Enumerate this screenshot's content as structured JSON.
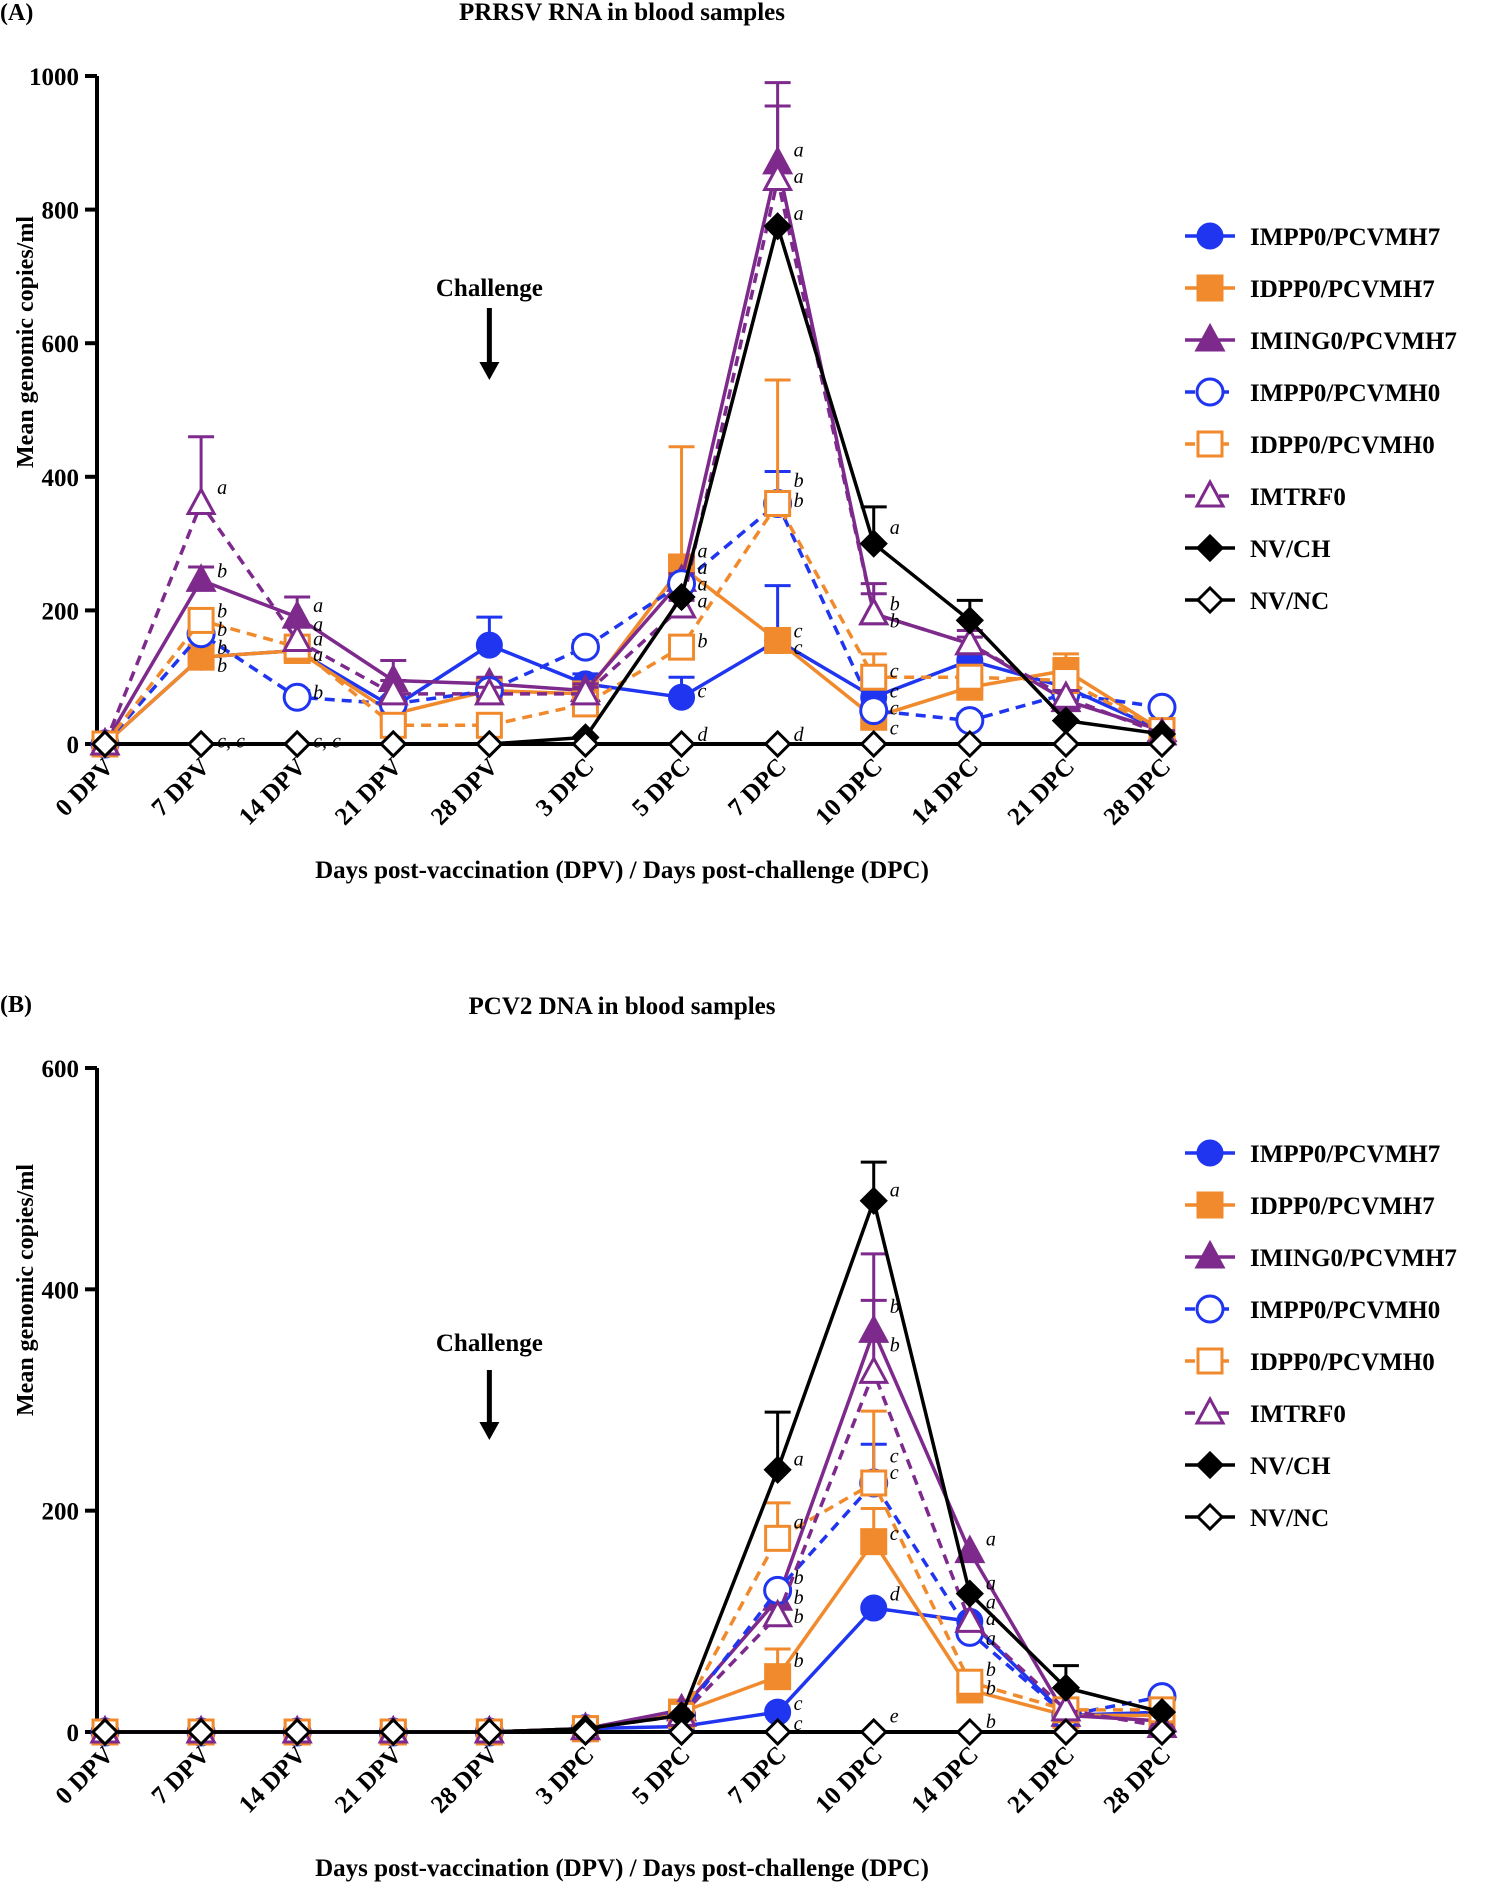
{
  "colors": {
    "IMPP0/PCVMH7": "#1f35f0",
    "IDPP0/PCVMH7": "#f08a2c",
    "IMING0/PCVMH7": "#7d2a8c",
    "IMPP0/PCVMH0": "#1f35f0",
    "IDPP0/PCVMH0": "#f08a2c",
    "IMTRF0": "#7d2a8c",
    "NV/CH": "#000000",
    "NV/NC": "#000000"
  },
  "chart_data": [
    {
      "type": "line",
      "panel_label": "(A)",
      "title": "PRRSV RNA in blood samples",
      "xlabel": "Days post-vaccination (DPV) / Days post-challenge (DPC)",
      "ylabel": "Mean genomic copies/ml",
      "ylim": [
        0,
        1000
      ],
      "yticks": [
        "0",
        "200",
        "400",
        "600",
        "800",
        "1000"
      ],
      "categories": [
        "0 DPV",
        "7 DPV",
        "14 DPV",
        "21 DPV",
        "28 DPV",
        "3 DPC",
        "5 DPC",
        "7 DPC",
        "10 DPC",
        "14 DPC",
        "21 DPC",
        "28 DPC"
      ],
      "annotation": "Challenge",
      "annotation_after": "28 DPV",
      "legend_position": "right",
      "series": [
        {
          "name": "IMPP0/PCVMH7",
          "marker": "circle",
          "filled": true,
          "dashed": false,
          "values": [
            0,
            130,
            140,
            55,
            148,
            90,
            70,
            155,
            70,
            125,
            85,
            20
          ],
          "err": [
            0,
            10,
            10,
            10,
            42,
            15,
            30,
            82,
            10,
            10,
            10,
            5
          ]
        },
        {
          "name": "IDPP0/PCVMH7",
          "marker": "square",
          "filled": true,
          "dashed": false,
          "values": [
            0,
            130,
            140,
            45,
            80,
            75,
            265,
            155,
            40,
            85,
            110,
            20
          ],
          "err": [
            0,
            10,
            10,
            10,
            10,
            10,
            180,
            10,
            10,
            10,
            25,
            5
          ]
        },
        {
          "name": "IMING0/PCVMH7",
          "marker": "triangle",
          "filled": true,
          "dashed": false,
          "values": [
            0,
            245,
            190,
            95,
            90,
            80,
            245,
            870,
            195,
            150,
            65,
            20
          ],
          "err": [
            0,
            20,
            30,
            30,
            10,
            10,
            10,
            120,
            45,
            20,
            10,
            5
          ]
        },
        {
          "name": "IMPP0/PCVMH0",
          "marker": "circle",
          "filled": false,
          "dashed": true,
          "values": [
            0,
            165,
            70,
            60,
            80,
            145,
            240,
            360,
            50,
            35,
            75,
            55
          ],
          "err": [
            0,
            10,
            10,
            10,
            10,
            10,
            10,
            48,
            10,
            10,
            10,
            5
          ]
        },
        {
          "name": "IDPP0/PCVMH0",
          "marker": "square",
          "filled": false,
          "dashed": true,
          "values": [
            0,
            185,
            145,
            28,
            28,
            60,
            145,
            360,
            100,
            100,
            95,
            20
          ],
          "err": [
            0,
            10,
            10,
            10,
            10,
            10,
            10,
            185,
            35,
            10,
            10,
            5
          ]
        },
        {
          "name": "IMTRF0",
          "marker": "triangle",
          "filled": false,
          "dashed": true,
          "values": [
            0,
            360,
            155,
            75,
            75,
            75,
            205,
            845,
            195,
            150,
            70,
            15
          ],
          "err": [
            0,
            100,
            20,
            20,
            10,
            10,
            10,
            110,
            30,
            10,
            10,
            5
          ]
        },
        {
          "name": "NV/CH",
          "marker": "diamond",
          "filled": true,
          "dashed": false,
          "values": [
            0,
            0,
            0,
            0,
            0,
            10,
            220,
            775,
            300,
            185,
            35,
            15
          ],
          "err": [
            0,
            0,
            0,
            0,
            0,
            0,
            0,
            0,
            55,
            30,
            0,
            0
          ]
        },
        {
          "name": "NV/NC",
          "marker": "diamond",
          "filled": false,
          "dashed": false,
          "values": [
            0,
            0,
            0,
            0,
            0,
            0,
            0,
            0,
            0,
            0,
            0,
            0
          ],
          "err": [
            0,
            0,
            0,
            0,
            0,
            0,
            0,
            0,
            0,
            0,
            0,
            0
          ]
        }
      ],
      "letters": [
        {
          "category": "7 DPV",
          "value": 385,
          "text": "a"
        },
        {
          "category": "7 DPV",
          "value": 260,
          "text": "b"
        },
        {
          "category": "7 DPV",
          "value": 200,
          "text": "b"
        },
        {
          "category": "7 DPV",
          "value": 172,
          "text": "b"
        },
        {
          "category": "7 DPV",
          "value": 145,
          "text": "b"
        },
        {
          "category": "7 DPV",
          "value": 118,
          "text": "b"
        },
        {
          "category": "7 DPV",
          "value": 5,
          "text": "c, c"
        },
        {
          "category": "14 DPV",
          "value": 208,
          "text": "a"
        },
        {
          "category": "14 DPV",
          "value": 180,
          "text": "a"
        },
        {
          "category": "14 DPV",
          "value": 158,
          "text": "a"
        },
        {
          "category": "14 DPV",
          "value": 135,
          "text": "a"
        },
        {
          "category": "14 DPV",
          "value": 78,
          "text": "b"
        },
        {
          "category": "14 DPV",
          "value": 5,
          "text": "c, c"
        },
        {
          "category": "5 DPC",
          "value": 290,
          "text": "a"
        },
        {
          "category": "5 DPC",
          "value": 265,
          "text": "a"
        },
        {
          "category": "5 DPC",
          "value": 240,
          "text": "a"
        },
        {
          "category": "5 DPC",
          "value": 215,
          "text": "a"
        },
        {
          "category": "5 DPC",
          "value": 155,
          "text": "b"
        },
        {
          "category": "5 DPC",
          "value": 80,
          "text": "c"
        },
        {
          "category": "5 DPC",
          "value": 15,
          "text": "d"
        },
        {
          "category": "7 DPC",
          "value": 890,
          "text": "a"
        },
        {
          "category": "7 DPC",
          "value": 850,
          "text": "a"
        },
        {
          "category": "7 DPC",
          "value": 795,
          "text": "a"
        },
        {
          "category": "7 DPC",
          "value": 395,
          "text": "b"
        },
        {
          "category": "7 DPC",
          "value": 365,
          "text": "b"
        },
        {
          "category": "7 DPC",
          "value": 170,
          "text": "c"
        },
        {
          "category": "7 DPC",
          "value": 145,
          "text": "c"
        },
        {
          "category": "7 DPC",
          "value": 15,
          "text": "d"
        },
        {
          "category": "10 DPC",
          "value": 325,
          "text": "a"
        },
        {
          "category": "10 DPC",
          "value": 210,
          "text": "b"
        },
        {
          "category": "10 DPC",
          "value": 185,
          "text": "b"
        },
        {
          "category": "10 DPC",
          "value": 110,
          "text": "c"
        },
        {
          "category": "10 DPC",
          "value": 80,
          "text": "c"
        },
        {
          "category": "10 DPC",
          "value": 55,
          "text": "c"
        },
        {
          "category": "10 DPC",
          "value": 25,
          "text": "c"
        }
      ]
    },
    {
      "type": "line",
      "panel_label": "(B)",
      "title": "PCV2 DNA in blood samples",
      "xlabel": "Days post-vaccination (DPV) / Days post-challenge (DPC)",
      "ylabel": "Mean genomic copies/ml",
      "ylim": [
        0,
        600
      ],
      "yticks": [
        "0",
        "200",
        "400",
        "600"
      ],
      "categories": [
        "0 DPV",
        "7 DPV",
        "14 DPV",
        "21 DPV",
        "28 DPV",
        "3 DPC",
        "5 DPC",
        "7 DPC",
        "10 DPC",
        "14 DPC",
        "21 DPC",
        "28 DPC"
      ],
      "annotation": "Challenge",
      "annotation_after": "28 DPV",
      "legend_position": "right",
      "series": [
        {
          "name": "IMPP0/PCVMH7",
          "marker": "circle",
          "filled": true,
          "dashed": false,
          "values": [
            0,
            0,
            0,
            0,
            0,
            3,
            5,
            18,
            112,
            100,
            15,
            18
          ],
          "err": [
            0,
            0,
            0,
            0,
            0,
            0,
            0,
            0,
            0,
            0,
            0,
            0
          ]
        },
        {
          "name": "IDPP0/PCVMH7",
          "marker": "square",
          "filled": true,
          "dashed": false,
          "values": [
            0,
            0,
            0,
            0,
            0,
            3,
            18,
            50,
            172,
            38,
            15,
            15
          ],
          "err": [
            0,
            0,
            0,
            0,
            0,
            0,
            0,
            25,
            30,
            0,
            0,
            0
          ]
        },
        {
          "name": "IMING0/PCVMH7",
          "marker": "triangle",
          "filled": true,
          "dashed": false,
          "values": [
            0,
            0,
            0,
            0,
            0,
            3,
            20,
            120,
            362,
            163,
            15,
            10
          ],
          "err": [
            0,
            0,
            0,
            0,
            0,
            0,
            0,
            0,
            70,
            0,
            0,
            0
          ]
        },
        {
          "name": "IMPP0/PCVMH0",
          "marker": "circle",
          "filled": false,
          "dashed": true,
          "values": [
            0,
            0,
            0,
            0,
            0,
            3,
            15,
            128,
            225,
            90,
            15,
            32
          ],
          "err": [
            0,
            0,
            0,
            0,
            0,
            0,
            0,
            0,
            35,
            0,
            0,
            0
          ]
        },
        {
          "name": "IDPP0/PCVMH0",
          "marker": "square",
          "filled": false,
          "dashed": true,
          "values": [
            0,
            0,
            0,
            0,
            0,
            3,
            15,
            175,
            225,
            45,
            20,
            20
          ],
          "err": [
            0,
            0,
            0,
            0,
            0,
            0,
            0,
            32,
            65,
            0,
            0,
            0
          ]
        },
        {
          "name": "IMTRF0",
          "marker": "triangle",
          "filled": false,
          "dashed": true,
          "values": [
            0,
            0,
            0,
            0,
            0,
            3,
            15,
            105,
            325,
            100,
            20,
            5
          ],
          "err": [
            0,
            0,
            0,
            0,
            0,
            0,
            0,
            0,
            65,
            0,
            0,
            0
          ]
        },
        {
          "name": "NV/CH",
          "marker": "diamond",
          "filled": true,
          "dashed": false,
          "values": [
            0,
            0,
            0,
            0,
            0,
            3,
            15,
            237,
            480,
            125,
            40,
            18
          ],
          "err": [
            0,
            0,
            0,
            0,
            0,
            0,
            0,
            52,
            35,
            0,
            20,
            0
          ]
        },
        {
          "name": "NV/NC",
          "marker": "diamond",
          "filled": false,
          "dashed": false,
          "values": [
            0,
            0,
            0,
            0,
            0,
            0,
            0,
            0,
            0,
            0,
            0,
            0
          ],
          "err": [
            0,
            0,
            0,
            0,
            0,
            0,
            0,
            0,
            0,
            0,
            0,
            0
          ]
        }
      ],
      "letters": [
        {
          "category": "7 DPC",
          "value": 247,
          "text": "a"
        },
        {
          "category": "7 DPC",
          "value": 190,
          "text": "a"
        },
        {
          "category": "7 DPC",
          "value": 140,
          "text": "b"
        },
        {
          "category": "7 DPC",
          "value": 122,
          "text": "b"
        },
        {
          "category": "7 DPC",
          "value": 105,
          "text": "b"
        },
        {
          "category": "7 DPC",
          "value": 65,
          "text": "b"
        },
        {
          "category": "7 DPC",
          "value": 26,
          "text": "c"
        },
        {
          "category": "7 DPC",
          "value": 8,
          "text": "c"
        },
        {
          "category": "10 DPC",
          "value": 490,
          "text": "a"
        },
        {
          "category": "10 DPC",
          "value": 385,
          "text": "b"
        },
        {
          "category": "10 DPC",
          "value": 350,
          "text": "b"
        },
        {
          "category": "10 DPC",
          "value": 250,
          "text": "c"
        },
        {
          "category": "10 DPC",
          "value": 235,
          "text": "c"
        },
        {
          "category": "10 DPC",
          "value": 180,
          "text": "c"
        },
        {
          "category": "10 DPC",
          "value": 125,
          "text": "d"
        },
        {
          "category": "10 DPC",
          "value": 15,
          "text": "e"
        },
        {
          "category": "14 DPC",
          "value": 175,
          "text": "a"
        },
        {
          "category": "14 DPC",
          "value": 135,
          "text": "a"
        },
        {
          "category": "14 DPC",
          "value": 118,
          "text": "a"
        },
        {
          "category": "14 DPC",
          "value": 103,
          "text": "a"
        },
        {
          "category": "14 DPC",
          "value": 85,
          "text": "a"
        },
        {
          "category": "14 DPC",
          "value": 57,
          "text": "b"
        },
        {
          "category": "14 DPC",
          "value": 40,
          "text": "b"
        },
        {
          "category": "14 DPC",
          "value": 10,
          "text": "b"
        }
      ]
    }
  ]
}
